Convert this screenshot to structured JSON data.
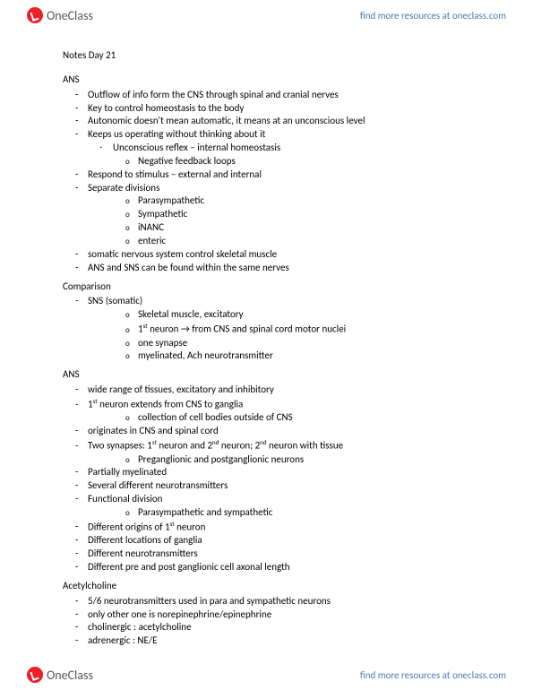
{
  "brand": {
    "one": "One",
    "class": "Class"
  },
  "link": "find more resources at oneclass.com",
  "title": "Notes Day 21",
  "s1": {
    "h": "ANS",
    "i": [
      "Outflow of info form the CNS through spinal and cranial nerves",
      "Key to control homeostasis to the body",
      "Autonomic doesn't mean automatic, it means at an unconscious level",
      "Keeps us operating without thinking about it"
    ],
    "i4a": "Unconscious reflex – internal homeostasis",
    "i4a1": "Negative feedback loops",
    "i5": "Respond to stimulus – external and internal",
    "i6": "Separate divisions",
    "i6s": [
      "Parasympathetic",
      "Sympathetic",
      "iNANC",
      "enteric"
    ],
    "i7": "somatic nervous system control skeletal muscle",
    "i8": "ANS and SNS can be found within the same nerves"
  },
  "s2": {
    "h": "Comparison",
    "i1": "SNS (somatic)",
    "i1s": [
      "Skeletal muscle, excitatory",
      "1st neuron → from CNS and spinal cord motor nuclei",
      "one synapse",
      "myelinated, Ach neurotransmitter"
    ]
  },
  "s3": {
    "h": "ANS",
    "i1": "wide range of tissues, excitatory and inhibitory",
    "i2": "1st neuron extends from CNS to ganglia",
    "i2s": "collection of cell bodies outside of CNS",
    "i3": "originates in CNS and spinal cord",
    "i4": "Two synapses: 1st neuron and 2nd neuron; 2nd neuron with tissue",
    "i4s": "Preganglionic and postganglionic neurons",
    "i5": "Partially myelinated",
    "i6": "Several different neurotransmitters",
    "i7": "Functional division",
    "i7s": "Parasympathetic and sympathetic",
    "i8": "Different origins of 1st neuron",
    "i9": "Different locations of ganglia",
    "i10": "Different neurotransmitters",
    "i11": "Different pre and post ganglionic cell axonal length"
  },
  "s4": {
    "h": "Acetylcholine",
    "i": [
      "5/6 neurotransmitters used in para and sympathetic neurons",
      "only other one is norepinephrine/epinephrine",
      "cholinergic : acetylcholine",
      "adrenergic : NE/E"
    ]
  }
}
